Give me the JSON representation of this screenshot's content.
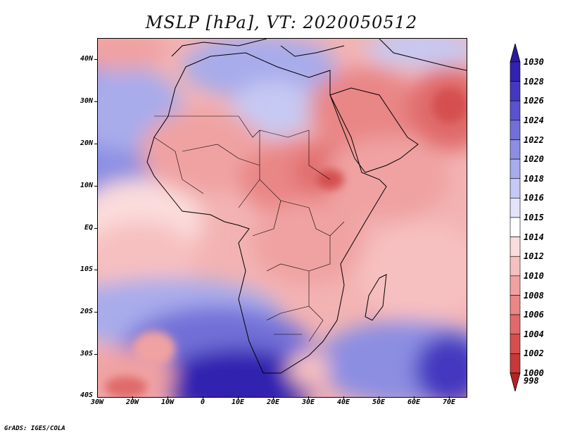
{
  "title": "MSLP [hPa], VT: 2020050512",
  "credit": "GrADS: IGES/COLA",
  "lat_labels": [
    "40N",
    "30N",
    "20N",
    "10N",
    "EQ",
    "10S",
    "20S",
    "30S",
    "40S"
  ],
  "lon_labels": [
    "30W",
    "20W",
    "10W",
    "0",
    "10E",
    "20E",
    "30E",
    "40E",
    "50E",
    "60E",
    "70E"
  ],
  "colorbar": {
    "levels": [
      "1030",
      "1028",
      "1026",
      "1024",
      "1022",
      "1020",
      "1018",
      "1016",
      "1015",
      "1014",
      "1012",
      "1010",
      "1008",
      "1006",
      "1004",
      "1002",
      "1000",
      "998"
    ],
    "colors": [
      "#2a1a9e",
      "#3322b0",
      "#4438c0",
      "#5a52cf",
      "#7270d8",
      "#8c8ee2",
      "#a8aceb",
      "#c6c9f3",
      "#e3e4fa",
      "#ffffff",
      "#fbdcdc",
      "#f7c0c0",
      "#f0a2a2",
      "#e98686",
      "#e06a6a",
      "#d54f4f",
      "#c73838",
      "#b52424"
    ]
  },
  "colors": {
    "land_border": "#000000",
    "ocean_south": "#4438c0",
    "sahel_low": "#e06a6a"
  }
}
